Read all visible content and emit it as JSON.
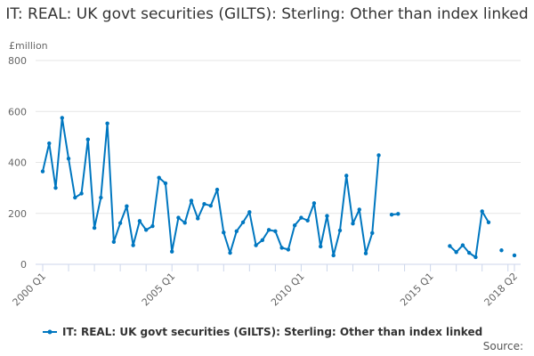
{
  "chart_data": {
    "type": "line",
    "title": "IT: REAL: UK govt securities (GILTS): Sterling: Other than index linked",
    "ylabel": "£million",
    "xlabel": "",
    "ylim": [
      0,
      800
    ],
    "yticks": [
      "0",
      "200",
      "400",
      "600",
      "800"
    ],
    "xticks": [
      {
        "label": "2000 Q1",
        "index": 0
      },
      {
        "label": "2005 Q1",
        "index": 20
      },
      {
        "label": "2010 Q1",
        "index": 40
      },
      {
        "label": "2015 Q1",
        "index": 60
      },
      {
        "label": "2018 Q2",
        "index": 73
      }
    ],
    "start": "2000 Q1",
    "end": "2018 Q2",
    "grid": true,
    "legend_position": "bottom",
    "series": [
      {
        "name": "IT: REAL: UK govt securities (GILTS): Sterling: Other than index linked",
        "color": "#0077c0",
        "values": [
          365,
          475,
          300,
          575,
          415,
          262,
          278,
          490,
          143,
          262,
          553,
          88,
          162,
          228,
          75,
          170,
          135,
          150,
          340,
          318,
          50,
          183,
          163,
          250,
          180,
          237,
          230,
          293,
          125,
          45,
          130,
          165,
          205,
          75,
          95,
          135,
          130,
          65,
          58,
          153,
          183,
          172,
          240,
          70,
          190,
          35,
          133,
          348,
          160,
          215,
          43,
          123,
          428,
          null,
          195,
          198,
          null,
          null,
          null,
          null,
          null,
          null,
          null,
          72,
          48,
          75,
          45,
          28,
          208,
          165,
          null,
          55,
          null,
          35
        ]
      }
    ]
  },
  "source_label": "Source:"
}
